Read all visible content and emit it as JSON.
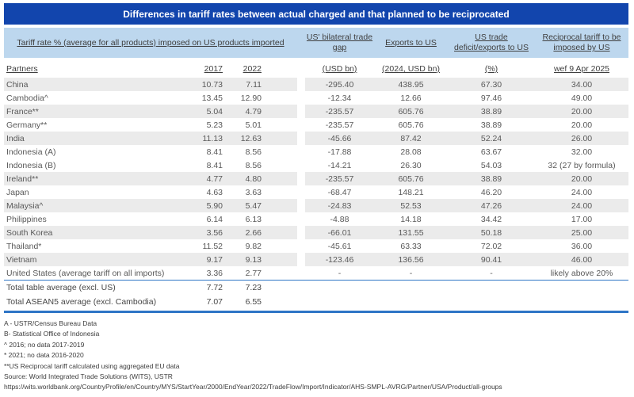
{
  "title": "Differences in tariff rates between actual charged and that planned to be reciprocated",
  "colors": {
    "title_bar_blue": "#1245ad",
    "header_light_blue": "#bdd7ee",
    "row_stripe_gray": "#ebebeb",
    "body_text_gray": "#595959",
    "highlight_red": "#e8495f",
    "highlight_blue": "#2e75c6",
    "rule_blue": "#2e75c6"
  },
  "header": {
    "tariff_group": "Tariff rate % (average for all products) imposed on US products imported",
    "col_groups": [
      "US' bilateral trade gap",
      "Exports to US",
      "US trade deficit/exports to US",
      "Reciprocal tariff to be imposed by US"
    ],
    "sub": {
      "partners": "Partners",
      "y2017": "2017",
      "y2022": "2022",
      "usd_bn": "(USD bn)",
      "usd_bn_2024": "(2024, USD bn)",
      "pct": "(%)",
      "wef": "wef 9 Apr 2025"
    }
  },
  "chart_data": {
    "type": "table",
    "title": "Differences in tariff rates between actual charged and that planned to be reciprocated",
    "columns": [
      "Partners",
      "Tariff rate % 2017",
      "Tariff rate % 2022",
      "US' bilateral trade gap (USD bn)",
      "Exports to US (2024, USD bn)",
      "US trade deficit/exports to US (%)",
      "Reciprocal tariff to be imposed by US wef 9 Apr 2025"
    ],
    "rows": [
      {
        "name": "China",
        "t2017": "10.73",
        "t2022": "7.11",
        "gap": "-295.40",
        "exp": "438.95",
        "pct": "67.30",
        "recip": "34.00",
        "style": "normal",
        "stripe": true
      },
      {
        "name": "Cambodia^",
        "t2017": "13.45",
        "t2022": "12.90",
        "gap": "-12.34",
        "exp": "12.66",
        "pct": "97.46",
        "recip": "49.00",
        "style": "normal",
        "stripe": false
      },
      {
        "name": "France**",
        "t2017": "5.04",
        "t2022": "4.79",
        "gap": "-235.57",
        "exp": "605.76",
        "pct": "38.89",
        "recip": "20.00",
        "style": "normal",
        "stripe": true
      },
      {
        "name": "Germany**",
        "t2017": "5.23",
        "t2022": "5.01",
        "gap": "-235.57",
        "exp": "605.76",
        "pct": "38.89",
        "recip": "20.00",
        "style": "normal",
        "stripe": false
      },
      {
        "name": "India",
        "t2017": "11.13",
        "t2022": "12.63",
        "gap": "-45.66",
        "exp": "87.42",
        "pct": "52.24",
        "recip": "26.00",
        "style": "normal",
        "stripe": true
      },
      {
        "name": "Indonesia (A)",
        "t2017": "8.41",
        "t2022": "8.56",
        "gap": "-17.88",
        "exp": "28.08",
        "pct": "63.67",
        "recip": "32.00",
        "style": "red",
        "stripe": false
      },
      {
        "name": "Indonesia (B)",
        "t2017": "8.41",
        "t2022": "8.56",
        "gap": "-14.21",
        "exp": "26.30",
        "pct": "54.03",
        "recip": "32 (27 by formula)",
        "style": "red",
        "stripe": false
      },
      {
        "name": "Ireland**",
        "t2017": "4.77",
        "t2022": "4.80",
        "gap": "-235.57",
        "exp": "605.76",
        "pct": "38.89",
        "recip": "20.00",
        "style": "normal",
        "stripe": true
      },
      {
        "name": "Japan",
        "t2017": "4.63",
        "t2022": "3.63",
        "gap": "-68.47",
        "exp": "148.21",
        "pct": "46.20",
        "recip": "24.00",
        "style": "normal",
        "stripe": false
      },
      {
        "name": "Malaysia^",
        "t2017": "5.90",
        "t2022": "5.47",
        "gap": "-24.83",
        "exp": "52.53",
        "pct": "47.26",
        "recip": "24.00",
        "style": "normal",
        "stripe": true
      },
      {
        "name": "Philippines",
        "t2017": "6.14",
        "t2022": "6.13",
        "gap": "-4.88",
        "exp": "14.18",
        "pct": "34.42",
        "recip": "17.00",
        "style": "normal",
        "stripe": false
      },
      {
        "name": "South Korea",
        "t2017": "3.56",
        "t2022": "2.66",
        "gap": "-66.01",
        "exp": "131.55",
        "pct": "50.18",
        "recip": "25.00",
        "style": "normal",
        "stripe": true
      },
      {
        "name": "Thailand*",
        "t2017": "11.52",
        "t2022": "9.82",
        "gap": "-45.61",
        "exp": "63.33",
        "pct": "72.02",
        "recip": "36.00",
        "style": "normal",
        "stripe": false
      },
      {
        "name": "Vietnam",
        "t2017": "9.17",
        "t2022": "9.13",
        "gap": "-123.46",
        "exp": "136.56",
        "pct": "90.41",
        "recip": "46.00",
        "style": "normal",
        "stripe": true
      },
      {
        "name": "United States (average tariff on all imports)",
        "t2017": "3.36",
        "t2022": "2.77",
        "gap": "-",
        "exp": "-",
        "pct": "-",
        "recip": "likely above 20%",
        "style": "blue",
        "stripe": false
      }
    ],
    "totals": [
      {
        "name": "Total table average (excl. US)",
        "t2017": "7.72",
        "t2022": "7.23"
      },
      {
        "name": "Total ASEAN5 average (excl. Cambodia)",
        "t2017": "7.07",
        "t2022": "6.55"
      }
    ]
  },
  "notes": [
    "A - USTR/Census Bureau Data",
    "B- Statistical Office of Indonesia",
    "^ 2016; no data 2017-2019",
    "* 2021; no data 2016-2020",
    "**US Reciprocal tariff calculated using aggregated EU data",
    "Source: World Integrated Trade Solutions (WITS), USTR",
    "https://wits.worldbank.org/CountryProfile/en/Country/MYS/StartYear/2000/EndYear/2022/TradeFlow/Import/Indicator/AHS-SMPL-AVRG/Partner/USA/Product/all-groups"
  ]
}
